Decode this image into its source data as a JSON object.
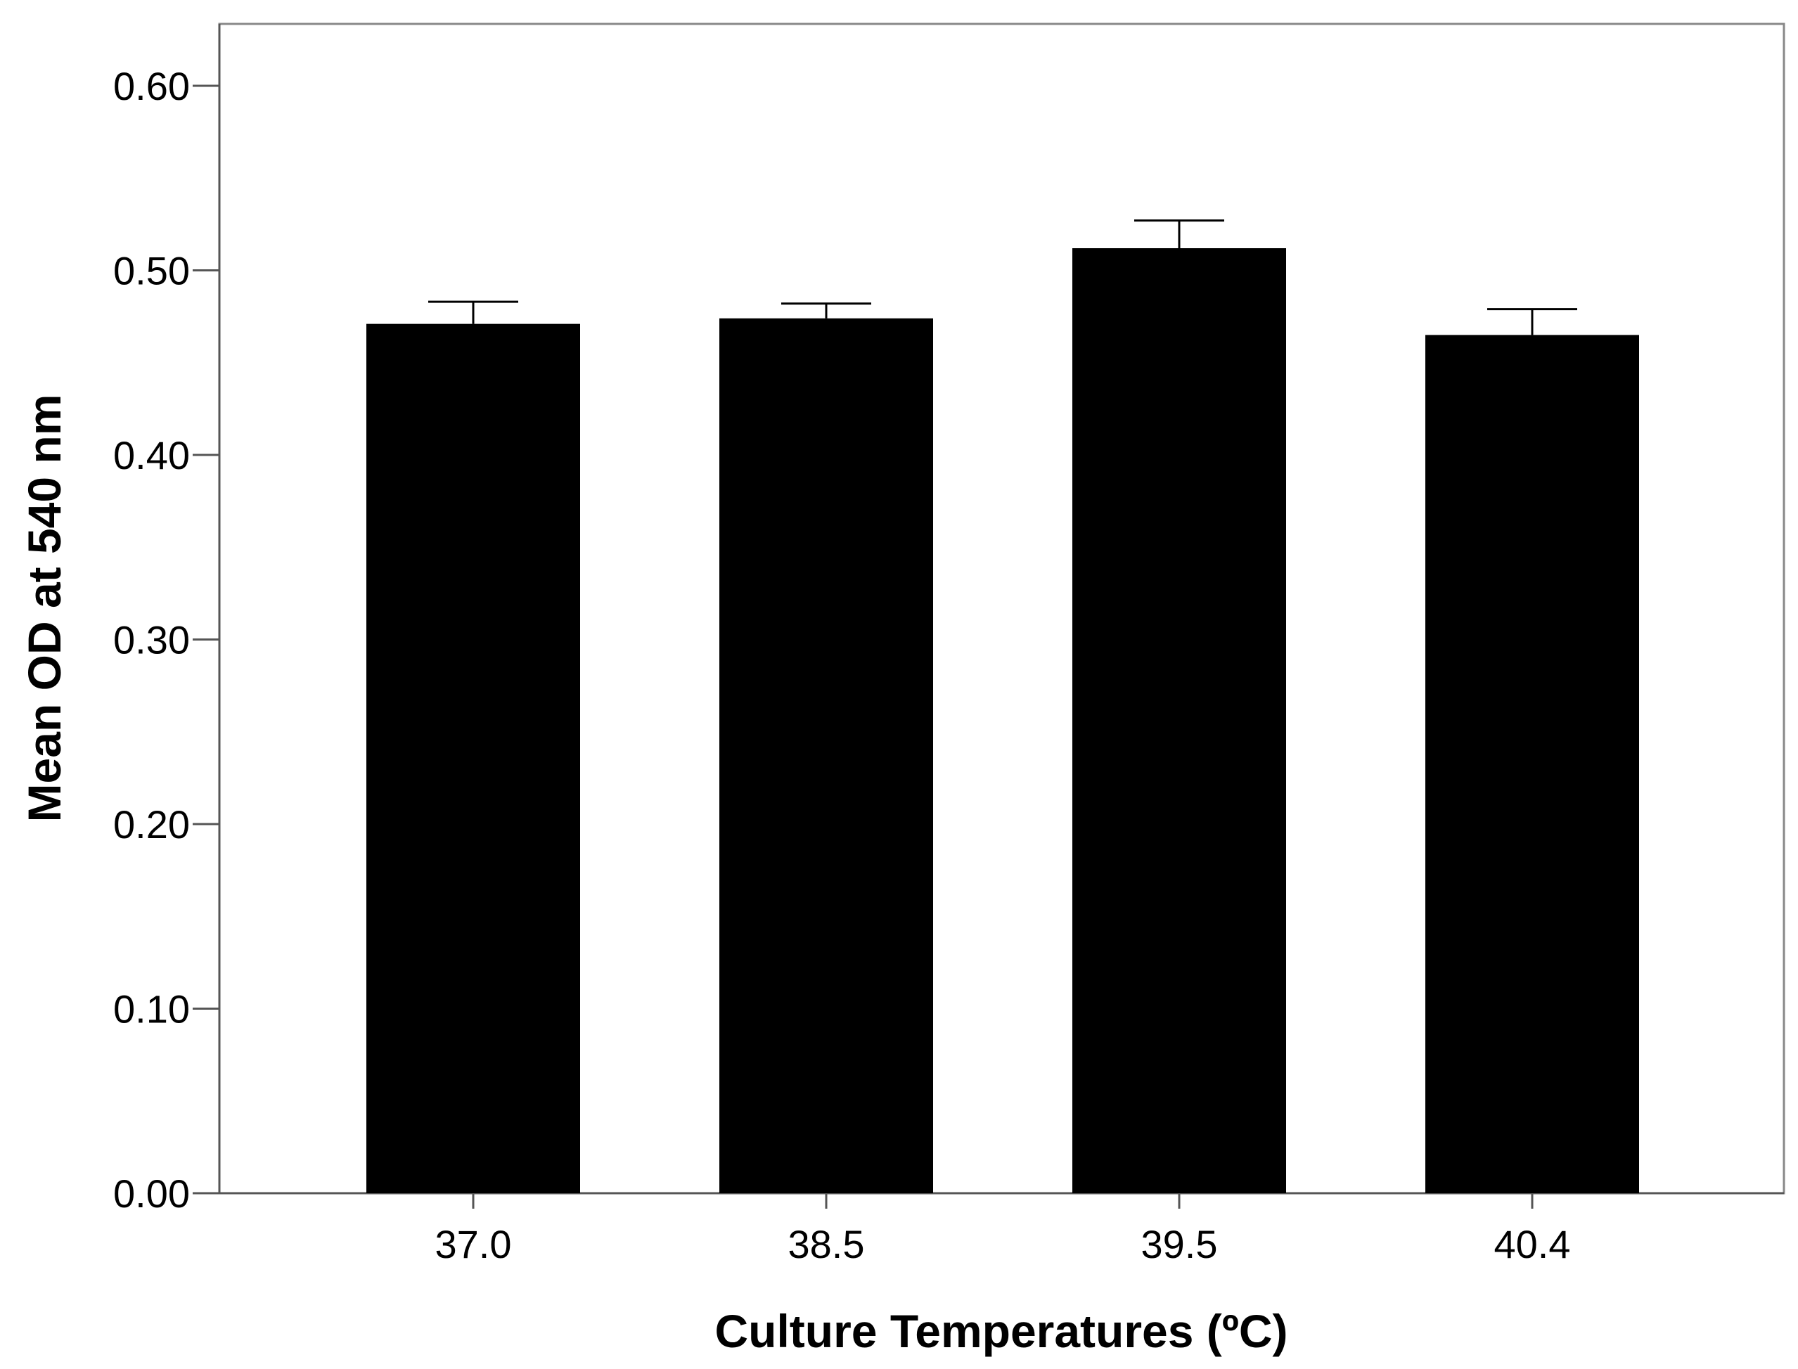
{
  "chart_data": {
    "type": "bar",
    "title": "",
    "xlabel": "Culture Temperatures (ºC)",
    "ylabel": "Mean OD at 540 nm",
    "categories": [
      "37.0",
      "38.5",
      "39.5",
      "40.4"
    ],
    "values": [
      0.471,
      0.474,
      0.512,
      0.465
    ],
    "error_upper": [
      0.483,
      0.482,
      0.527,
      0.479
    ],
    "ylim": [
      0,
      0.6
    ],
    "yticks": [
      "0.00",
      "0.10",
      "0.20",
      "0.30",
      "0.40",
      "0.50",
      "0.60"
    ],
    "ytick_values": [
      0,
      0.1,
      0.2,
      0.3,
      0.4,
      0.5,
      0.6
    ],
    "grid": false,
    "colors": {
      "bar": "#000000",
      "axis": "#555555",
      "frame": "#888888",
      "text": "#000000"
    }
  }
}
